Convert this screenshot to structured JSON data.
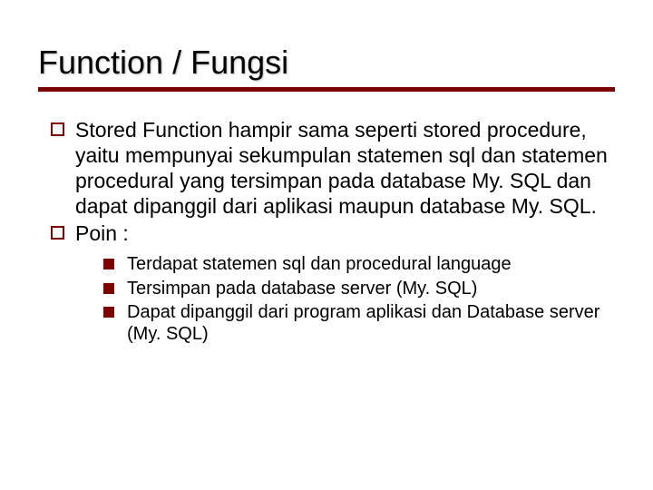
{
  "colors": {
    "accent": "#7a0000",
    "text": "#000000",
    "background": "#ffffff"
  },
  "typography": {
    "title_fontsize": 36,
    "l1_fontsize": 23,
    "l2_fontsize": 20,
    "font_family": "Verdana"
  },
  "slide": {
    "title": "Function / Fungsi",
    "l1": [
      {
        "text": "Stored Function hampir sama seperti stored procedure, yaitu mempunyai sekumpulan statemen sql dan statemen procedural yang tersimpan pada database My. SQL dan dapat dipanggil dari aplikasi maupun database My. SQL."
      },
      {
        "text": "Poin :"
      }
    ],
    "l2": [
      {
        "text": "Terdapat statemen sql dan procedural language"
      },
      {
        "text": "Tersimpan pada database server (My. SQL)"
      },
      {
        "text": "Dapat dipanggil dari program aplikasi dan Database server (My. SQL)"
      }
    ]
  }
}
